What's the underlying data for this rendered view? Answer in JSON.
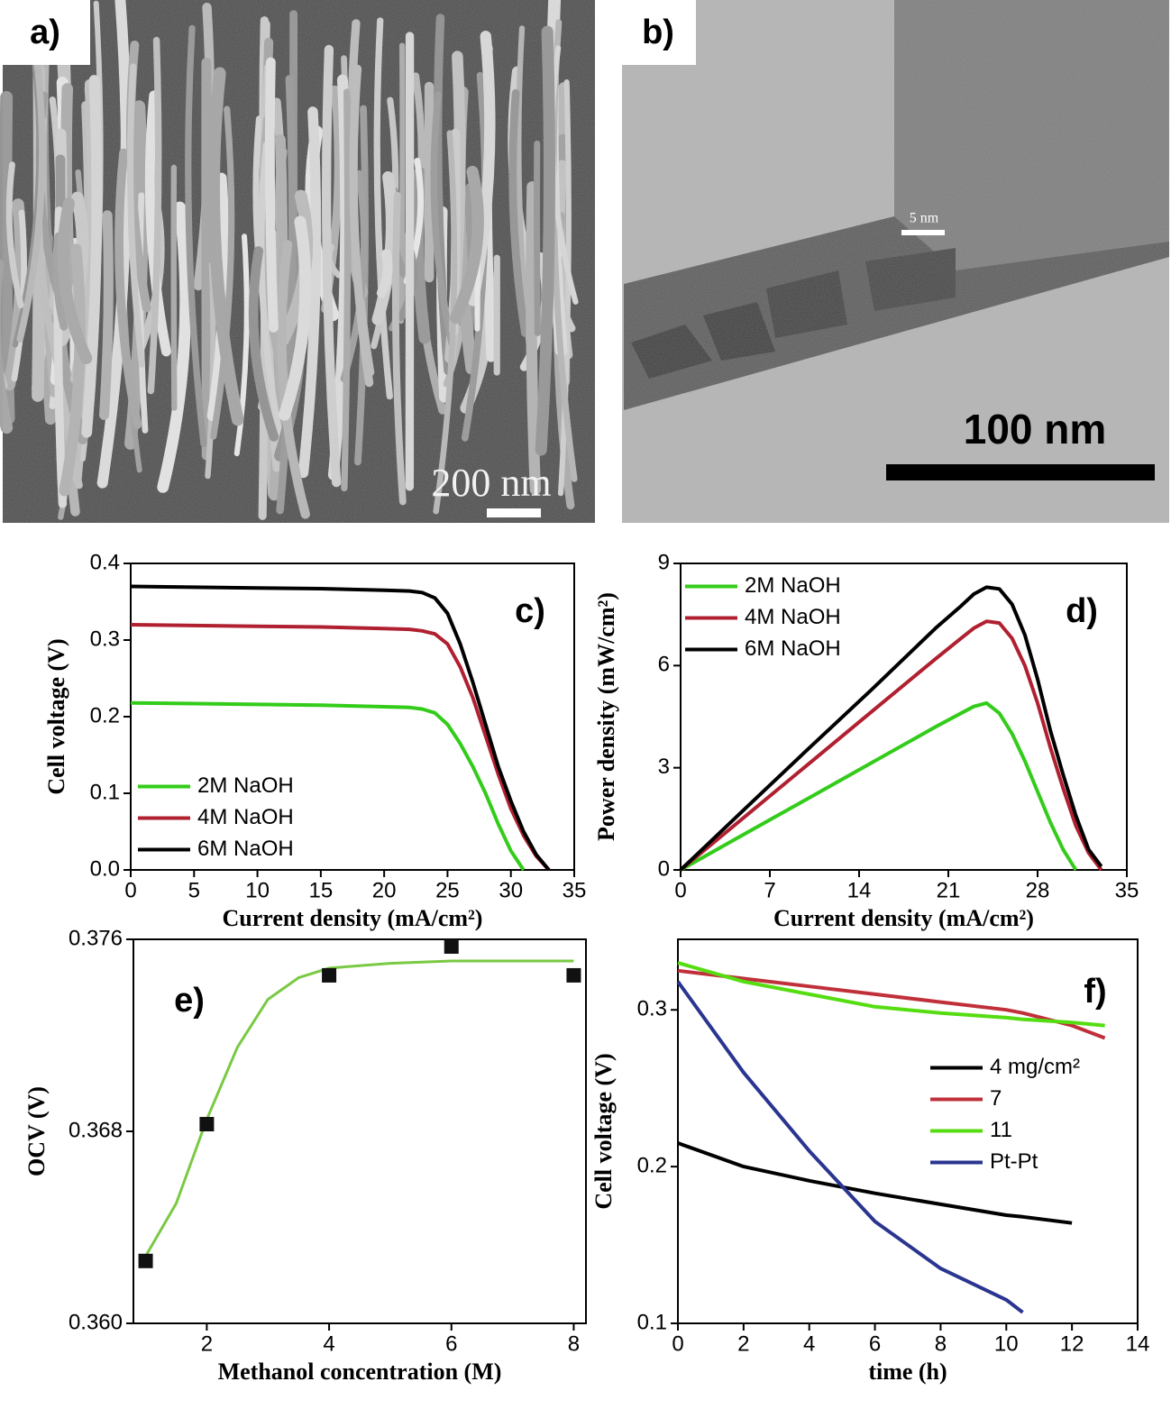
{
  "panels": [
    {
      "label": "a)",
      "scale_bar": "200 nm"
    },
    {
      "label": "b)",
      "scale_bar": "100 nm",
      "inset_scale_bar": "5 nm"
    }
  ],
  "chart_data": [
    {
      "type": "line",
      "label": "c)",
      "xlabel": "Current density (mA/cm²)",
      "ylabel": "Cell voltage (V)",
      "xlim": [
        0,
        35
      ],
      "ylim": [
        0,
        0.4
      ],
      "xticks": [
        0,
        5,
        10,
        15,
        20,
        25,
        30,
        35
      ],
      "yticks": [
        {
          "value": 0,
          "label": "0.0"
        },
        0.1,
        0.2,
        0.3,
        0.4
      ],
      "legend": "lower left",
      "x": [
        0,
        5,
        10,
        15,
        20,
        22,
        23,
        24,
        25,
        26,
        27,
        28,
        29,
        30,
        31,
        32,
        33
      ],
      "series": [
        {
          "name": "2M NaOH",
          "color": "#33cc1a",
          "values": [
            0.218,
            0.217,
            0.216,
            0.215,
            0.213,
            0.212,
            0.21,
            0.205,
            0.19,
            0.165,
            0.135,
            0.1,
            0.06,
            0.025,
            0,
            null,
            null
          ]
        },
        {
          "name": "4M NaOH",
          "color": "#b02030",
          "values": [
            0.32,
            0.319,
            0.318,
            0.317,
            0.315,
            0.314,
            0.312,
            0.308,
            0.295,
            0.265,
            0.225,
            0.175,
            0.125,
            0.08,
            0.045,
            0.018,
            0
          ]
        },
        {
          "name": "6M NaOH",
          "color": "#000000",
          "values": [
            0.37,
            0.369,
            0.368,
            0.367,
            0.365,
            0.364,
            0.362,
            0.355,
            0.335,
            0.295,
            0.245,
            0.19,
            0.135,
            0.09,
            0.05,
            0.02,
            0
          ]
        }
      ]
    },
    {
      "type": "line",
      "label": "d)",
      "xlabel": "Current density (mA/cm²)",
      "ylabel": "Power density (mW/cm²)",
      "xlim": [
        0,
        35
      ],
      "ylim": [
        0,
        9
      ],
      "xticks": [
        0,
        7,
        14,
        21,
        28,
        35
      ],
      "yticks": [
        0,
        3,
        6,
        9
      ],
      "legend": "upper left",
      "x": [
        0,
        5,
        10,
        15,
        20,
        22,
        23,
        24,
        25,
        26,
        27,
        28,
        29,
        30,
        31,
        32,
        33
      ],
      "series": [
        {
          "name": "2M NaOH",
          "color": "#33cc1a",
          "values": [
            0,
            1.05,
            2.1,
            3.15,
            4.2,
            4.6,
            4.8,
            4.9,
            4.6,
            4.0,
            3.2,
            2.3,
            1.4,
            0.6,
            0,
            null,
            null
          ]
        },
        {
          "name": "4M NaOH",
          "color": "#b02030",
          "values": [
            0,
            1.55,
            3.1,
            4.65,
            6.2,
            6.8,
            7.1,
            7.3,
            7.25,
            6.8,
            6.0,
            4.9,
            3.6,
            2.4,
            1.3,
            0.5,
            0
          ]
        },
        {
          "name": "6M NaOH",
          "color": "#000000",
          "values": [
            0,
            1.78,
            3.55,
            5.3,
            7.1,
            7.75,
            8.1,
            8.3,
            8.25,
            7.8,
            6.9,
            5.6,
            4.1,
            2.8,
            1.6,
            0.6,
            0.1
          ]
        }
      ]
    },
    {
      "type": "line",
      "label": "e)",
      "xlabel": "Methanol concentration (M)",
      "ylabel": "OCV (V)",
      "xlim": [
        0.8,
        8.2
      ],
      "ylim": [
        0.36,
        0.376
      ],
      "xticks": [
        2,
        4,
        6,
        8
      ],
      "yticks": [
        {
          "value": 0.36,
          "label": "0.360"
        },
        0.368,
        0.376
      ],
      "series": [
        {
          "color": "#7ac943",
          "x": [
            1,
            1.5,
            2,
            2.5,
            3,
            3.5,
            4,
            5,
            6,
            7,
            8
          ],
          "values": [
            0.3628,
            0.365,
            0.3685,
            0.3715,
            0.3735,
            0.3744,
            0.3748,
            0.375,
            0.3751,
            0.3751,
            0.3751
          ]
        },
        {
          "color": "#111111",
          "marker": "square",
          "line": false,
          "x": [
            1,
            2,
            4,
            6,
            8
          ],
          "values": [
            0.3626,
            0.3683,
            0.3745,
            0.3757,
            0.3745
          ]
        }
      ]
    },
    {
      "type": "line",
      "label": "f)",
      "xlabel": "time (h)",
      "ylabel": "Cell voltage (V)",
      "xlim": [
        0,
        14
      ],
      "ylim": [
        0.1,
        0.345
      ],
      "xticks": [
        0,
        2,
        4,
        6,
        8,
        10,
        12,
        14
      ],
      "yticks": [
        0.1,
        0.2,
        0.3
      ],
      "legend": "center right",
      "x": [
        0,
        2,
        4,
        6,
        8,
        10,
        10.5,
        12,
        13
      ],
      "series": [
        {
          "name": "4 mg/cm²",
          "color": "#000000",
          "values": [
            0.215,
            0.2,
            0.191,
            0.183,
            0.176,
            0.169,
            0.168,
            0.164,
            null
          ]
        },
        {
          "name": "7",
          "color": "#c0303a",
          "values": [
            0.325,
            0.32,
            0.315,
            0.31,
            0.305,
            0.3,
            0.298,
            0.29,
            0.282
          ]
        },
        {
          "name": "11",
          "color": "#55dd11",
          "values": [
            0.33,
            0.318,
            0.31,
            0.302,
            0.298,
            0.295,
            0.294,
            0.292,
            0.29
          ]
        },
        {
          "name": "Pt-Pt",
          "color": "#2a3590",
          "values": [
            0.318,
            0.26,
            0.21,
            0.165,
            0.135,
            0.115,
            0.107,
            null,
            null
          ]
        }
      ]
    }
  ]
}
